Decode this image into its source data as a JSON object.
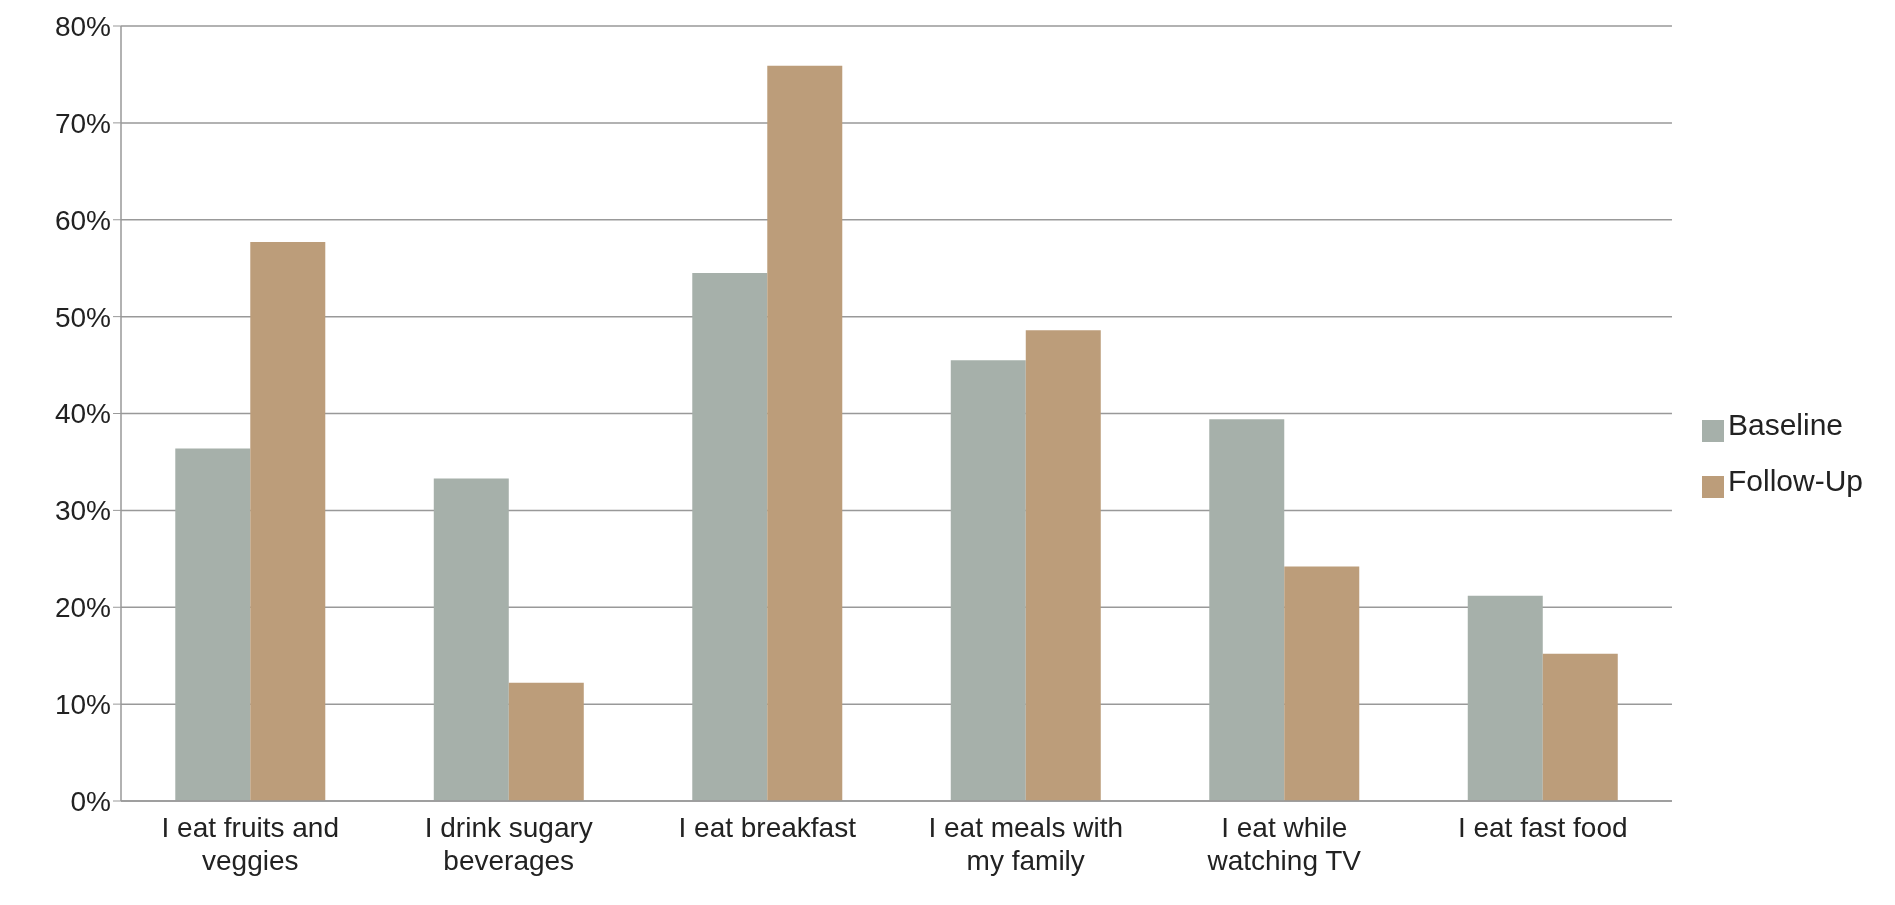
{
  "chart_data": {
    "type": "bar",
    "categories": [
      "I eat fruits and veggies",
      "I drink sugary beverages",
      "I eat breakfast",
      "I eat meals with my family",
      "I eat while watching TV",
      "I eat fast food"
    ],
    "series": [
      {
        "name": "Baseline",
        "color": "#a6b0aa",
        "values": [
          36.4,
          33.3,
          54.5,
          45.5,
          39.4,
          21.2
        ]
      },
      {
        "name": "Follow-Up",
        "color": "#bc9d7a",
        "values": [
          57.7,
          12.2,
          75.9,
          48.6,
          24.2,
          15.2
        ]
      }
    ],
    "ylim": [
      0,
      80
    ],
    "yticks": [
      {
        "value": 0,
        "label": "0%"
      },
      {
        "value": 10,
        "label": "10%"
      },
      {
        "value": 20,
        "label": "20%"
      },
      {
        "value": 30,
        "label": "30%"
      },
      {
        "value": 40,
        "label": "40%"
      },
      {
        "value": 50,
        "label": "50%"
      },
      {
        "value": 60,
        "label": "60%"
      },
      {
        "value": 70,
        "label": "70%"
      },
      {
        "value": 80,
        "label": "80%"
      }
    ],
    "grid": "y",
    "legend": "right"
  }
}
